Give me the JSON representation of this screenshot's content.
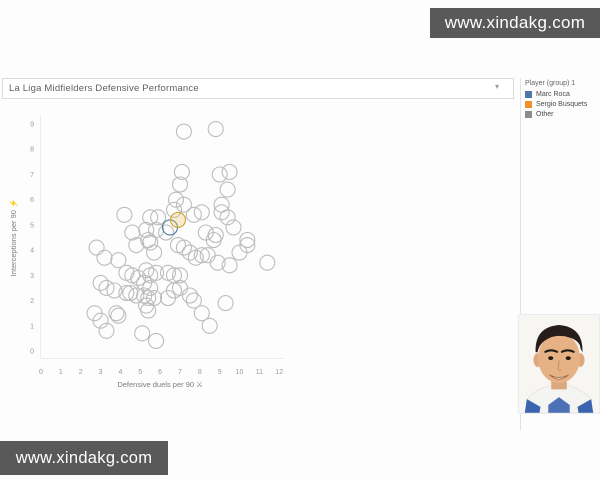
{
  "watermark": {
    "text": "www.xindakg.com",
    "bg": "#595959",
    "fg": "#ffffff"
  },
  "title_bar": {
    "title": "La Liga Midfielders Defensive Performance",
    "caret": "▾"
  },
  "legend": {
    "header": "Player (group) 1",
    "items": [
      {
        "label": "Marc Roca",
        "color": "#4e79a7"
      },
      {
        "label": "Sergio Busquets",
        "color": "#f28e2b"
      },
      {
        "label": "Other",
        "color": "#8c8c8c"
      }
    ]
  },
  "chart_data": {
    "type": "scatter",
    "title": "La Liga Midfielders Defensive Performance",
    "xlabel": "Defensive duels per 90 ⚔",
    "ylabel": "Interceptions per 90 ⚡",
    "xlim": [
      0,
      12
    ],
    "ylim": [
      0,
      9
    ],
    "x_ticks": [
      0,
      1,
      2,
      3,
      4,
      5,
      6,
      7,
      8,
      9,
      10,
      11,
      12
    ],
    "y_ticks": [
      0,
      1,
      2,
      3,
      4,
      5,
      6,
      7,
      8,
      9
    ],
    "grid": false,
    "legend_position": "right-panel",
    "marker": {
      "shape": "open-circle",
      "radius_px": 7.5,
      "default_stroke": "#bcbcbc"
    },
    "series": [
      {
        "name": "Marc Roca",
        "color": "#4e79a7",
        "points": [
          [
            6.5,
            4.9
          ]
        ]
      },
      {
        "name": "Sergio Busquets",
        "color": "#f28e2b",
        "points": [
          [
            6.9,
            5.2
          ]
        ]
      },
      {
        "name": "Other",
        "color": "#bcbcbc",
        "points": [
          [
            7.2,
            8.7
          ],
          [
            8.8,
            8.8
          ],
          [
            7.1,
            7.1
          ],
          [
            9.0,
            7.0
          ],
          [
            9.5,
            7.1
          ],
          [
            9.4,
            6.4
          ],
          [
            7.0,
            6.6
          ],
          [
            6.8,
            6.0
          ],
          [
            6.7,
            5.6
          ],
          [
            7.2,
            5.8
          ],
          [
            9.1,
            5.8
          ],
          [
            9.1,
            5.5
          ],
          [
            4.2,
            5.4
          ],
          [
            5.5,
            5.3
          ],
          [
            5.9,
            5.3
          ],
          [
            7.7,
            5.4
          ],
          [
            8.1,
            5.5
          ],
          [
            9.4,
            5.3
          ],
          [
            4.6,
            4.7
          ],
          [
            5.3,
            4.8
          ],
          [
            5.8,
            4.8
          ],
          [
            6.3,
            4.7
          ],
          [
            5.4,
            4.4
          ],
          [
            8.3,
            4.7
          ],
          [
            8.8,
            4.6
          ],
          [
            9.7,
            4.9
          ],
          [
            10.4,
            4.4
          ],
          [
            2.8,
            4.1
          ],
          [
            3.2,
            3.7
          ],
          [
            4.8,
            4.2
          ],
          [
            5.5,
            4.3
          ],
          [
            5.7,
            3.9
          ],
          [
            6.9,
            4.2
          ],
          [
            7.2,
            4.1
          ],
          [
            7.5,
            3.9
          ],
          [
            7.8,
            3.7
          ],
          [
            8.1,
            3.8
          ],
          [
            8.4,
            3.8
          ],
          [
            8.7,
            4.4
          ],
          [
            8.9,
            3.5
          ],
          [
            9.5,
            3.4
          ],
          [
            10.0,
            3.9
          ],
          [
            10.4,
            4.2
          ],
          [
            11.4,
            3.5
          ],
          [
            3.9,
            3.6
          ],
          [
            4.3,
            3.1
          ],
          [
            4.6,
            3.0
          ],
          [
            4.9,
            2.9
          ],
          [
            5.3,
            3.2
          ],
          [
            5.5,
            3.0
          ],
          [
            5.2,
            2.7
          ],
          [
            5.5,
            2.5
          ],
          [
            5.8,
            3.1
          ],
          [
            6.4,
            3.1
          ],
          [
            6.7,
            3.0
          ],
          [
            7.0,
            3.0
          ],
          [
            3.0,
            2.7
          ],
          [
            3.3,
            2.5
          ],
          [
            3.7,
            2.4
          ],
          [
            4.3,
            2.3
          ],
          [
            4.5,
            2.3
          ],
          [
            4.8,
            2.2
          ],
          [
            5.2,
            2.2
          ],
          [
            5.4,
            2.1
          ],
          [
            5.7,
            2.1
          ],
          [
            6.4,
            2.1
          ],
          [
            6.7,
            2.4
          ],
          [
            7.0,
            2.5
          ],
          [
            7.5,
            2.2
          ],
          [
            7.7,
            2.0
          ],
          [
            5.3,
            1.8
          ],
          [
            5.4,
            1.6
          ],
          [
            2.7,
            1.5
          ],
          [
            3.0,
            1.2
          ],
          [
            3.8,
            1.5
          ],
          [
            3.9,
            1.4
          ],
          [
            3.3,
            0.8
          ],
          [
            8.1,
            1.5
          ],
          [
            8.5,
            1.0
          ],
          [
            9.3,
            1.9
          ],
          [
            5.1,
            0.7
          ],
          [
            5.8,
            0.4
          ]
        ]
      }
    ]
  },
  "photo": {
    "skin_color": "#e6b285",
    "hair_color": "#271d18",
    "jersey_color": "#f4f4f2",
    "jersey_accent": "#3a63b0",
    "background": "#f8f6f3"
  }
}
